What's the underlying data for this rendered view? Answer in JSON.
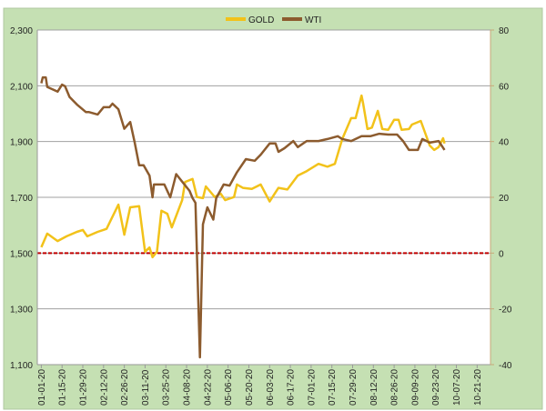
{
  "chart_data": {
    "type": "line",
    "title": "",
    "xlabel": "",
    "ylabel": "",
    "xlim": [
      "2020-01-01",
      "2020-10-30"
    ],
    "x_tick_labels": [
      "01-01-20",
      "01-15-20",
      "01-29-20",
      "02-12-20",
      "02-26-20",
      "03-11-20",
      "03-25-20",
      "04-08-20",
      "04-22-20",
      "05-06-20",
      "05-20-20",
      "06-03-20",
      "06-17-20",
      "07-01-20",
      "07-15-20",
      "07-29-20",
      "08-12-20",
      "08-26-20",
      "09-09-20",
      "09-23-20",
      "10-07-20",
      "10-21-20"
    ],
    "y_left": {
      "lim": [
        1100,
        2300
      ],
      "ticks": [
        1100,
        1300,
        1500,
        1700,
        1900,
        2100,
        2300
      ],
      "tick_labels": [
        "1,100",
        "1,300",
        "1,500",
        "1,700",
        "1,900",
        "2,100",
        "2,300"
      ]
    },
    "y_right": {
      "lim": [
        -40,
        80
      ],
      "ticks": [
        -40,
        -20,
        0,
        20,
        40,
        60,
        80
      ],
      "tick_labels": [
        "-40",
        "-20",
        "0",
        "20",
        "40",
        "60",
        "80"
      ]
    },
    "grid": true,
    "reference_line": {
      "axis": "right",
      "value": 0,
      "style": "dashed",
      "color": "#C00000"
    },
    "legend": {
      "placement": "bottom",
      "entries": [
        "GOLD",
        "WTI"
      ]
    },
    "colors": {
      "gold": "#F2C21A",
      "wti": "#8C5B2E",
      "background": "#C5E0B3",
      "plot_bg": "#FFFFFF",
      "grid": "#A0A0A0"
    },
    "series": [
      {
        "name": "GOLD",
        "axis": "left",
        "color": "#F2C21A",
        "points": [
          [
            "2020-01-01",
            1521
          ],
          [
            "2020-01-05",
            1570
          ],
          [
            "2020-01-12",
            1543
          ],
          [
            "2020-01-18",
            1560
          ],
          [
            "2020-01-25",
            1576
          ],
          [
            "2020-01-29",
            1583
          ],
          [
            "2020-02-01",
            1560
          ],
          [
            "2020-02-08",
            1576
          ],
          [
            "2020-02-14",
            1587
          ],
          [
            "2020-02-22",
            1674
          ],
          [
            "2020-02-26",
            1566
          ],
          [
            "2020-03-01",
            1664
          ],
          [
            "2020-03-07",
            1668
          ],
          [
            "2020-03-11",
            1505
          ],
          [
            "2020-03-14",
            1520
          ],
          [
            "2020-03-16",
            1485
          ],
          [
            "2020-03-19",
            1505
          ],
          [
            "2020-03-22",
            1652
          ],
          [
            "2020-03-26",
            1641
          ],
          [
            "2020-03-29",
            1592
          ],
          [
            "2020-04-05",
            1690
          ],
          [
            "2020-04-07",
            1755
          ],
          [
            "2020-04-12",
            1766
          ],
          [
            "2020-04-15",
            1701
          ],
          [
            "2020-04-19",
            1697
          ],
          [
            "2020-04-21",
            1739
          ],
          [
            "2020-04-27",
            1701
          ],
          [
            "2020-05-01",
            1713
          ],
          [
            "2020-05-04",
            1690
          ],
          [
            "2020-05-10",
            1701
          ],
          [
            "2020-05-12",
            1746
          ],
          [
            "2020-05-16",
            1734
          ],
          [
            "2020-05-22",
            1730
          ],
          [
            "2020-05-28",
            1746
          ],
          [
            "2020-06-03",
            1685
          ],
          [
            "2020-06-09",
            1734
          ],
          [
            "2020-06-15",
            1728
          ],
          [
            "2020-06-22",
            1778
          ],
          [
            "2020-06-28",
            1794
          ],
          [
            "2020-07-06",
            1820
          ],
          [
            "2020-07-12",
            1810
          ],
          [
            "2020-07-17",
            1820
          ],
          [
            "2020-07-22",
            1909
          ],
          [
            "2020-07-28",
            1984
          ],
          [
            "2020-07-31",
            1984
          ],
          [
            "2020-08-04",
            2065
          ],
          [
            "2020-08-05",
            2039
          ],
          [
            "2020-08-08",
            1945
          ],
          [
            "2020-08-11",
            1950
          ],
          [
            "2020-08-15",
            2010
          ],
          [
            "2020-08-18",
            1945
          ],
          [
            "2020-08-22",
            1942
          ],
          [
            "2020-08-26",
            1978
          ],
          [
            "2020-08-29",
            1978
          ],
          [
            "2020-08-31",
            1942
          ],
          [
            "2020-09-05",
            1945
          ],
          [
            "2020-09-07",
            1961
          ],
          [
            "2020-09-13",
            1974
          ],
          [
            "2020-09-19",
            1886
          ],
          [
            "2020-09-22",
            1870
          ],
          [
            "2020-09-25",
            1880
          ],
          [
            "2020-09-28",
            1912
          ],
          [
            "2020-09-29",
            1893
          ]
        ]
      },
      {
        "name": "WTI",
        "axis": "right",
        "color": "#8C5B2E",
        "points": [
          [
            "2020-01-01",
            60.9
          ],
          [
            "2020-01-02",
            63
          ],
          [
            "2020-01-04",
            63
          ],
          [
            "2020-01-05",
            59.6
          ],
          [
            "2020-01-12",
            57.9
          ],
          [
            "2020-01-15",
            60.4
          ],
          [
            "2020-01-17",
            59.8
          ],
          [
            "2020-01-20",
            56
          ],
          [
            "2020-01-25",
            53.3
          ],
          [
            "2020-01-31",
            50.6
          ],
          [
            "2020-02-02",
            50.6
          ],
          [
            "2020-02-08",
            49.7
          ],
          [
            "2020-02-12",
            52.3
          ],
          [
            "2020-02-16",
            52.3
          ],
          [
            "2020-02-18",
            53.6
          ],
          [
            "2020-02-22",
            51.6
          ],
          [
            "2020-02-26",
            44.6
          ],
          [
            "2020-03-01",
            47
          ],
          [
            "2020-03-04",
            39.7
          ],
          [
            "2020-03-07",
            31.5
          ],
          [
            "2020-03-10",
            31.5
          ],
          [
            "2020-03-14",
            27.8
          ],
          [
            "2020-03-16",
            20
          ],
          [
            "2020-03-17",
            24.6
          ],
          [
            "2020-03-24",
            24.6
          ],
          [
            "2020-03-28",
            20
          ],
          [
            "2020-04-01",
            28.3
          ],
          [
            "2020-04-05",
            25.6
          ],
          [
            "2020-04-10",
            22.3
          ],
          [
            "2020-04-12",
            19.7
          ],
          [
            "2020-04-14",
            18
          ],
          [
            "2020-04-17",
            -37.4
          ],
          [
            "2020-04-19",
            10.3
          ],
          [
            "2020-04-22",
            16.4
          ],
          [
            "2020-04-26",
            12
          ],
          [
            "2020-04-28",
            19.7
          ],
          [
            "2020-05-03",
            24.6
          ],
          [
            "2020-05-07",
            24.2
          ],
          [
            "2020-05-12",
            29
          ],
          [
            "2020-05-18",
            33.7
          ],
          [
            "2020-05-24",
            33.1
          ],
          [
            "2020-05-28",
            35.3
          ],
          [
            "2020-06-03",
            39.3
          ],
          [
            "2020-06-07",
            39.3
          ],
          [
            "2020-06-09",
            36.3
          ],
          [
            "2020-06-13",
            37.6
          ],
          [
            "2020-06-19",
            40.2
          ],
          [
            "2020-06-22",
            38
          ],
          [
            "2020-06-28",
            40.2
          ],
          [
            "2020-07-06",
            40.2
          ],
          [
            "2020-07-12",
            40.9
          ],
          [
            "2020-07-19",
            41.9
          ],
          [
            "2020-07-22",
            40.9
          ],
          [
            "2020-07-28",
            40.2
          ],
          [
            "2020-08-04",
            41.9
          ],
          [
            "2020-08-10",
            41.9
          ],
          [
            "2020-08-16",
            42.8
          ],
          [
            "2020-08-22",
            42.5
          ],
          [
            "2020-08-28",
            42.5
          ],
          [
            "2020-09-01",
            40.2
          ],
          [
            "2020-09-05",
            37
          ],
          [
            "2020-09-11",
            37
          ],
          [
            "2020-09-14",
            40.9
          ],
          [
            "2020-09-19",
            39.6
          ],
          [
            "2020-09-25",
            40.2
          ],
          [
            "2020-09-29",
            37
          ]
        ]
      }
    ]
  }
}
